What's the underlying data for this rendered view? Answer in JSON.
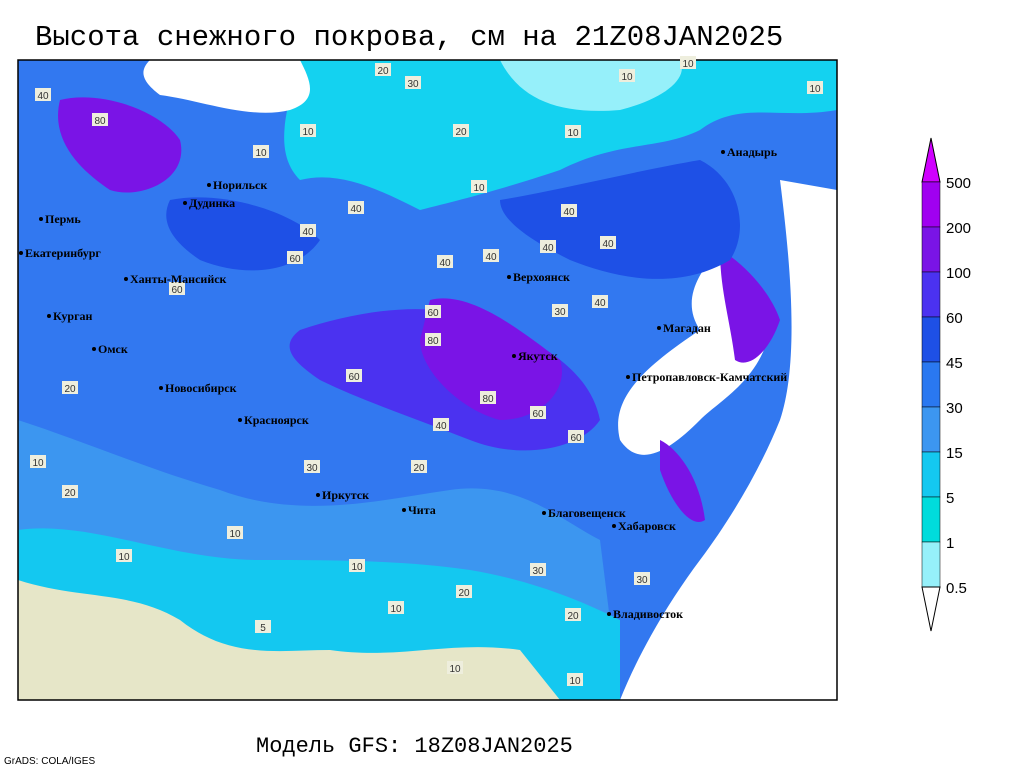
{
  "header": {
    "title": "Высота снежного покрова, см на 21Z08JAN2025"
  },
  "footer": {
    "model": "Модель GFS: 18Z08JAN2025",
    "credit": "GrADS: COLA/IGES"
  },
  "colorbar": {
    "levels": [
      500,
      200,
      100,
      60,
      45,
      30,
      15,
      5,
      1,
      0.5
    ],
    "colors": [
      "#d000ff",
      "#a000f0",
      "#7a14e6",
      "#4b32f0",
      "#1e50e6",
      "#2a78f0",
      "#3c96f0",
      "#14c8f0",
      "#00dcdc",
      "#96f0fa",
      "#ffffff"
    ]
  },
  "cities": [
    "Анадырь",
    "Норильск",
    "Дудинка",
    "Пермь",
    "Екатеринбург",
    "Ханты-Мансийск",
    "Курган",
    "Омск",
    "Новосибирск",
    "Красноярск",
    "Иркутск",
    "Чита",
    "Верхоянск",
    "Якутск",
    "Магадан",
    "Петропавловск-Камчатский",
    "Благовещенск",
    "Хабаровск",
    "Владивосток"
  ],
  "contour_labels": [
    20,
    30,
    10,
    10,
    10,
    40,
    80,
    10,
    20,
    10,
    10,
    10,
    40,
    40,
    40,
    40,
    40,
    40,
    40,
    60,
    60,
    60,
    40,
    30,
    80,
    60,
    80,
    60,
    60,
    40,
    30,
    20,
    20,
    10,
    10,
    10,
    30,
    20,
    10,
    5,
    10,
    10,
    20,
    30,
    20,
    10
  ]
}
